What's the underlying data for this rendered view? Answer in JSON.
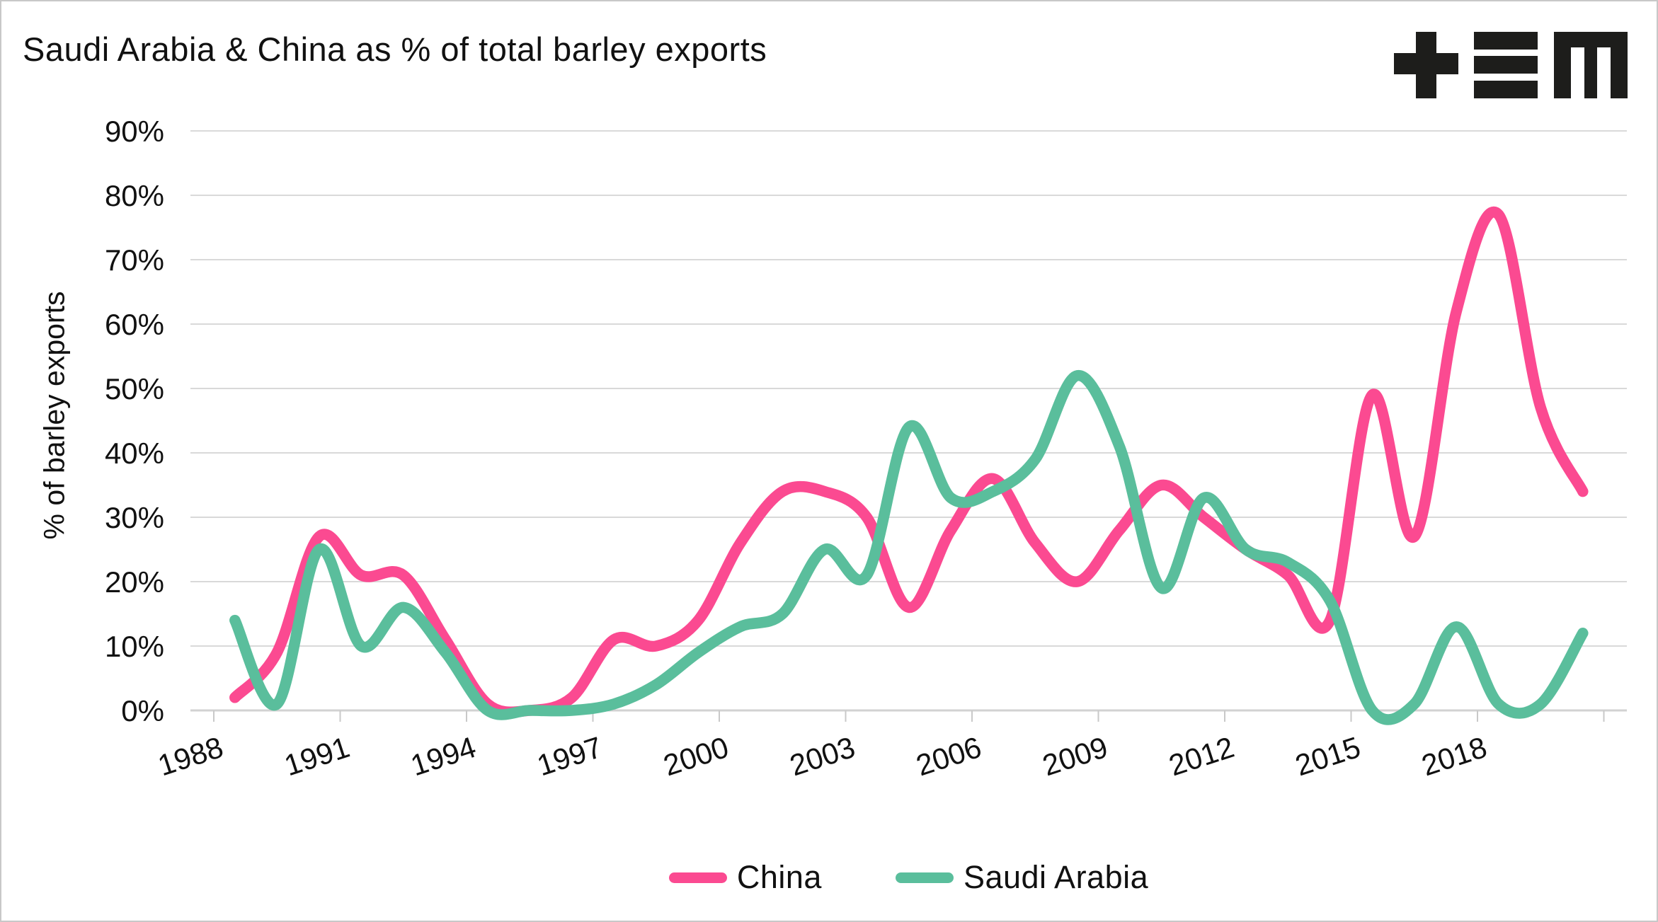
{
  "chart_data": {
    "type": "line",
    "title": "Saudi Arabia & China as % of total barley exports",
    "ylabel": "% of barley exports",
    "grid": true,
    "legend_position": "bottom",
    "x_label_rotation_deg": -18,
    "ylim": [
      0,
      90
    ],
    "years": [
      1988,
      1989,
      1990,
      1991,
      1992,
      1993,
      1994,
      1995,
      1996,
      1997,
      1998,
      1999,
      2000,
      2001,
      2002,
      2003,
      2004,
      2005,
      2006,
      2007,
      2008,
      2009,
      2010,
      2011,
      2012,
      2013,
      2014,
      2015,
      2016,
      2017,
      2018,
      2019,
      2020
    ],
    "x_tick_labels": [
      "1988",
      "1991",
      "1994",
      "1997",
      "2000",
      "2003",
      "2006",
      "2009",
      "2012",
      "2015",
      "2018",
      ""
    ],
    "y_ticks": [
      {
        "label": "0%",
        "value": 0
      },
      {
        "label": "10%",
        "value": 10
      },
      {
        "label": "20%",
        "value": 20
      },
      {
        "label": "30%",
        "value": 30
      },
      {
        "label": "40%",
        "value": 40
      },
      {
        "label": "50%",
        "value": 50
      },
      {
        "label": "60%",
        "value": 60
      },
      {
        "label": "70%",
        "value": 70
      },
      {
        "label": "80%",
        "value": 80
      },
      {
        "label": "90%",
        "value": 90
      }
    ],
    "series": [
      {
        "name": "China",
        "color": "#fb4a91",
        "values": [
          2,
          9,
          27,
          21,
          21,
          11,
          1,
          0,
          2,
          11,
          10,
          14,
          26,
          34,
          34,
          30,
          16,
          28,
          36,
          26,
          20,
          28,
          35,
          30,
          25,
          21,
          14,
          49,
          27,
          62,
          77,
          47,
          34
        ]
      },
      {
        "name": "Saudi Arabia",
        "color": "#5abe9c",
        "values": [
          14,
          1,
          25,
          10,
          16,
          9,
          0,
          0,
          0,
          1,
          4,
          9,
          13,
          15,
          25,
          21,
          44,
          33,
          34,
          39,
          52,
          41,
          19,
          33,
          25,
          23,
          17,
          0,
          1,
          13,
          1,
          1,
          12
        ]
      }
    ],
    "colors": {
      "gridline": "#d9d9d9",
      "axis": "#d2d2d2",
      "text": "#111111",
      "background": "#ffffff",
      "logo": "#1d1d1b"
    }
  }
}
